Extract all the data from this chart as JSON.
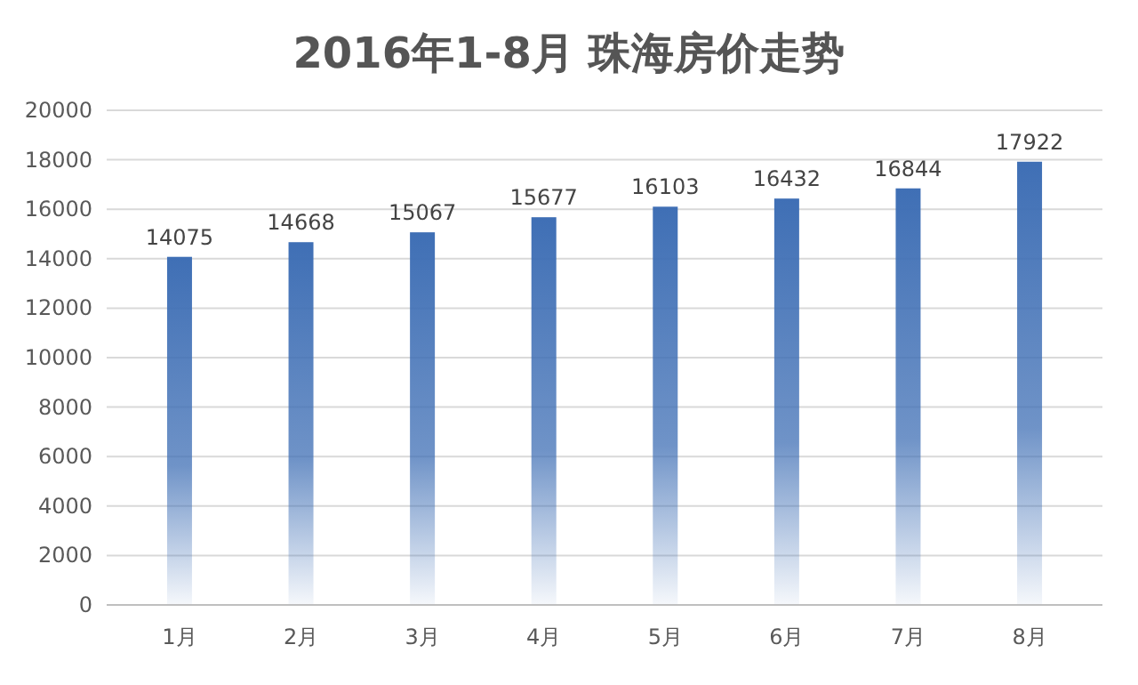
{
  "chart_data": {
    "type": "bar",
    "title": "2016年1-8月 珠海房价走势",
    "categories": [
      "1月",
      "2月",
      "3月",
      "4月",
      "5月",
      "6月",
      "7月",
      "8月"
    ],
    "values": [
      14075,
      14668,
      15067,
      15677,
      16103,
      16432,
      16844,
      17922
    ],
    "color": "#3f6fb5",
    "ylim": [
      0,
      20000
    ],
    "yticks": [
      0,
      2000,
      4000,
      6000,
      8000,
      10000,
      12000,
      14000,
      16000,
      18000,
      20000
    ],
    "grid": "y",
    "data_labels": true
  }
}
